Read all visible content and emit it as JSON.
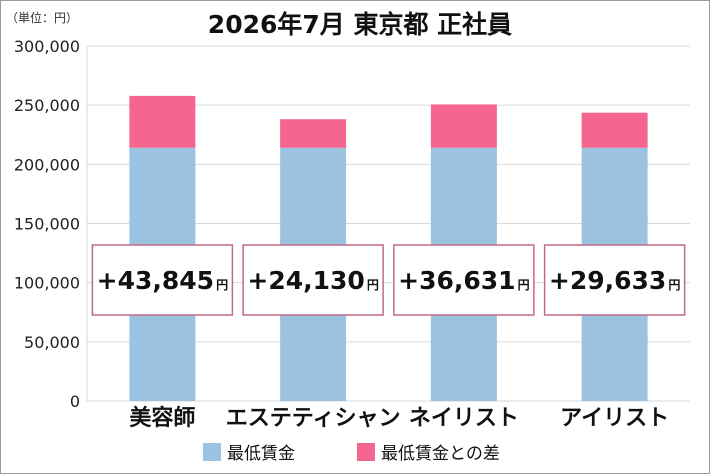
{
  "chart_data": {
    "type": "bar",
    "stacked": true,
    "title": "2026年7月 東京都 正社員",
    "unit_label": "（単位：円）",
    "categories": [
      "美容師",
      "エステティシャン",
      "ネイリスト",
      "アイリスト"
    ],
    "series": [
      {
        "name": "最低賃金",
        "color": "#9cc2e1",
        "values": [
          214000,
          214000,
          214000,
          214000
        ]
      },
      {
        "name": "最低賃金との差",
        "color": "#f4658f",
        "values": [
          43845,
          24130,
          36631,
          29633
        ]
      }
    ],
    "annotations": [
      {
        "value": "+43,845",
        "unit": "円"
      },
      {
        "value": "+24,130",
        "unit": "円"
      },
      {
        "value": "+36,631",
        "unit": "円"
      },
      {
        "value": "+29,633",
        "unit": "円"
      }
    ],
    "yticks": [
      "0",
      "50,000",
      "100,000",
      "150,000",
      "200,000",
      "250,000",
      "300,000"
    ],
    "ylim": [
      0,
      300000
    ],
    "grid": true,
    "legend": "bottom",
    "colors": {
      "grid": "#d9d9d9",
      "annotation_border": "#c06b86"
    }
  }
}
